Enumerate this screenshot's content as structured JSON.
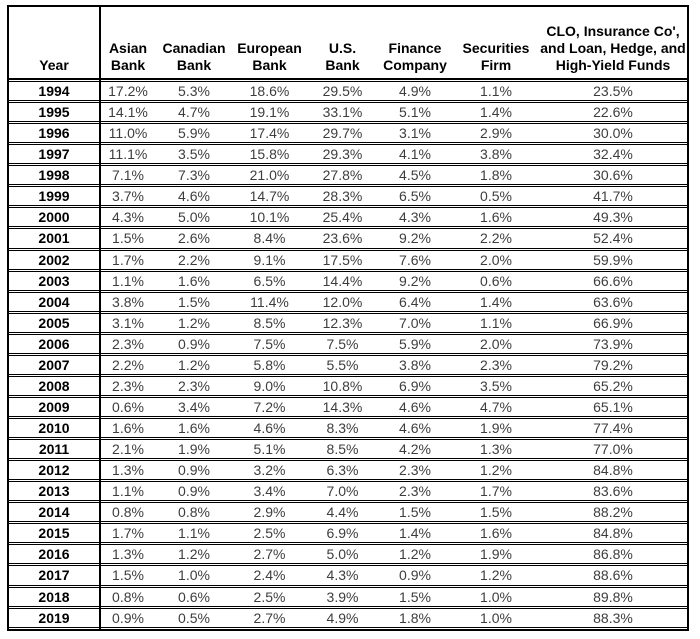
{
  "table": {
    "header": {
      "lines": [
        [
          "Year"
        ],
        [
          "Asian",
          "Bank"
        ],
        [
          "Canadian",
          "Bank"
        ],
        [
          "European",
          "Bank"
        ],
        [
          "U.S.",
          "Bank"
        ],
        [
          "Finance",
          "Company"
        ],
        [
          "Securities",
          "Firm"
        ],
        [
          "CLO, Insurance Co',",
          "and Loan, Hedge, and",
          "High-Yield Funds"
        ]
      ]
    },
    "rows": [
      {
        "year": "1994",
        "cells": [
          "17.2%",
          "5.3%",
          "18.6%",
          "29.5%",
          "4.9%",
          "1.1%",
          "23.5%"
        ]
      },
      {
        "year": "1995",
        "cells": [
          "14.1%",
          "4.7%",
          "19.1%",
          "33.1%",
          "5.1%",
          "1.4%",
          "22.6%"
        ]
      },
      {
        "year": "1996",
        "cells": [
          "11.0%",
          "5.9%",
          "17.4%",
          "29.7%",
          "3.1%",
          "2.9%",
          "30.0%"
        ]
      },
      {
        "year": "1997",
        "cells": [
          "11.1%",
          "3.5%",
          "15.8%",
          "29.3%",
          "4.1%",
          "3.8%",
          "32.4%"
        ]
      },
      {
        "year": "1998",
        "cells": [
          "7.1%",
          "7.3%",
          "21.0%",
          "27.8%",
          "4.5%",
          "1.8%",
          "30.6%"
        ]
      },
      {
        "year": "1999",
        "cells": [
          "3.7%",
          "4.6%",
          "14.7%",
          "28.3%",
          "6.5%",
          "0.5%",
          "41.7%"
        ]
      },
      {
        "year": "2000",
        "cells": [
          "4.3%",
          "5.0%",
          "10.1%",
          "25.4%",
          "4.3%",
          "1.6%",
          "49.3%"
        ]
      },
      {
        "year": "2001",
        "cells": [
          "1.5%",
          "2.6%",
          "8.4%",
          "23.6%",
          "9.2%",
          "2.2%",
          "52.4%"
        ]
      },
      {
        "year": "2002",
        "cells": [
          "1.7%",
          "2.2%",
          "9.1%",
          "17.5%",
          "7.6%",
          "2.0%",
          "59.9%"
        ]
      },
      {
        "year": "2003",
        "cells": [
          "1.1%",
          "1.6%",
          "6.5%",
          "14.4%",
          "9.2%",
          "0.6%",
          "66.6%"
        ]
      },
      {
        "year": "2004",
        "cells": [
          "3.8%",
          "1.5%",
          "11.4%",
          "12.0%",
          "6.4%",
          "1.4%",
          "63.6%"
        ]
      },
      {
        "year": "2005",
        "cells": [
          "3.1%",
          "1.2%",
          "8.5%",
          "12.3%",
          "7.0%",
          "1.1%",
          "66.9%"
        ]
      },
      {
        "year": "2006",
        "cells": [
          "2.3%",
          "0.9%",
          "7.5%",
          "7.5%",
          "5.9%",
          "2.0%",
          "73.9%"
        ]
      },
      {
        "year": "2007",
        "cells": [
          "2.2%",
          "1.2%",
          "5.8%",
          "5.5%",
          "3.8%",
          "2.3%",
          "79.2%"
        ]
      },
      {
        "year": "2008",
        "cells": [
          "2.3%",
          "2.3%",
          "9.0%",
          "10.8%",
          "6.9%",
          "3.5%",
          "65.2%"
        ]
      },
      {
        "year": "2009",
        "cells": [
          "0.6%",
          "3.4%",
          "7.2%",
          "14.3%",
          "4.6%",
          "4.7%",
          "65.1%"
        ]
      },
      {
        "year": "2010",
        "cells": [
          "1.6%",
          "1.6%",
          "4.6%",
          "8.3%",
          "4.6%",
          "1.9%",
          "77.4%"
        ]
      },
      {
        "year": "2011",
        "cells": [
          "2.1%",
          "1.9%",
          "5.1%",
          "8.5%",
          "4.2%",
          "1.3%",
          "77.0%"
        ]
      },
      {
        "year": "2012",
        "cells": [
          "1.3%",
          "0.9%",
          "3.2%",
          "6.3%",
          "2.3%",
          "1.2%",
          "84.8%"
        ]
      },
      {
        "year": "2013",
        "cells": [
          "1.1%",
          "0.9%",
          "3.4%",
          "7.0%",
          "2.3%",
          "1.7%",
          "83.6%"
        ]
      },
      {
        "year": "2014",
        "cells": [
          "0.8%",
          "0.8%",
          "2.9%",
          "4.4%",
          "1.5%",
          "1.5%",
          "88.2%"
        ]
      },
      {
        "year": "2015",
        "cells": [
          "1.7%",
          "1.1%",
          "2.5%",
          "6.9%",
          "1.4%",
          "1.6%",
          "84.8%"
        ]
      },
      {
        "year": "2016",
        "cells": [
          "1.3%",
          "1.2%",
          "2.7%",
          "5.0%",
          "1.2%",
          "1.9%",
          "86.8%"
        ]
      },
      {
        "year": "2017",
        "cells": [
          "1.5%",
          "1.0%",
          "2.4%",
          "4.3%",
          "0.9%",
          "1.2%",
          "88.6%"
        ]
      },
      {
        "year": "2018",
        "cells": [
          "0.8%",
          "0.6%",
          "2.5%",
          "3.9%",
          "1.5%",
          "1.0%",
          "89.8%"
        ]
      },
      {
        "year": "2019",
        "cells": [
          "0.9%",
          "0.5%",
          "2.7%",
          "4.9%",
          "1.8%",
          "1.0%",
          "88.3%"
        ]
      }
    ]
  },
  "chart_data": {
    "type": "table",
    "title": "",
    "columns": [
      "Year",
      "Asian Bank",
      "Canadian Bank",
      "European Bank",
      "U.S. Bank",
      "Finance Company",
      "Securities Firm",
      "CLO, Insurance Co', and Loan, Hedge, and High-Yield Funds"
    ],
    "unit": "percent",
    "rows": [
      [
        1994,
        17.2,
        5.3,
        18.6,
        29.5,
        4.9,
        1.1,
        23.5
      ],
      [
        1995,
        14.1,
        4.7,
        19.1,
        33.1,
        5.1,
        1.4,
        22.6
      ],
      [
        1996,
        11.0,
        5.9,
        17.4,
        29.7,
        3.1,
        2.9,
        30.0
      ],
      [
        1997,
        11.1,
        3.5,
        15.8,
        29.3,
        4.1,
        3.8,
        32.4
      ],
      [
        1998,
        7.1,
        7.3,
        21.0,
        27.8,
        4.5,
        1.8,
        30.6
      ],
      [
        1999,
        3.7,
        4.6,
        14.7,
        28.3,
        6.5,
        0.5,
        41.7
      ],
      [
        2000,
        4.3,
        5.0,
        10.1,
        25.4,
        4.3,
        1.6,
        49.3
      ],
      [
        2001,
        1.5,
        2.6,
        8.4,
        23.6,
        9.2,
        2.2,
        52.4
      ],
      [
        2002,
        1.7,
        2.2,
        9.1,
        17.5,
        7.6,
        2.0,
        59.9
      ],
      [
        2003,
        1.1,
        1.6,
        6.5,
        14.4,
        9.2,
        0.6,
        66.6
      ],
      [
        2004,
        3.8,
        1.5,
        11.4,
        12.0,
        6.4,
        1.4,
        63.6
      ],
      [
        2005,
        3.1,
        1.2,
        8.5,
        12.3,
        7.0,
        1.1,
        66.9
      ],
      [
        2006,
        2.3,
        0.9,
        7.5,
        7.5,
        5.9,
        2.0,
        73.9
      ],
      [
        2007,
        2.2,
        1.2,
        5.8,
        5.5,
        3.8,
        2.3,
        79.2
      ],
      [
        2008,
        2.3,
        2.3,
        9.0,
        10.8,
        6.9,
        3.5,
        65.2
      ],
      [
        2009,
        0.6,
        3.4,
        7.2,
        14.3,
        4.6,
        4.7,
        65.1
      ],
      [
        2010,
        1.6,
        1.6,
        4.6,
        8.3,
        4.6,
        1.9,
        77.4
      ],
      [
        2011,
        2.1,
        1.9,
        5.1,
        8.5,
        4.2,
        1.3,
        77.0
      ],
      [
        2012,
        1.3,
        0.9,
        3.2,
        6.3,
        2.3,
        1.2,
        84.8
      ],
      [
        2013,
        1.1,
        0.9,
        3.4,
        7.0,
        2.3,
        1.7,
        83.6
      ],
      [
        2014,
        0.8,
        0.8,
        2.9,
        4.4,
        1.5,
        1.5,
        88.2
      ],
      [
        2015,
        1.7,
        1.1,
        2.5,
        6.9,
        1.4,
        1.6,
        84.8
      ],
      [
        2016,
        1.3,
        1.2,
        2.7,
        5.0,
        1.2,
        1.9,
        86.8
      ],
      [
        2017,
        1.5,
        1.0,
        2.4,
        4.3,
        0.9,
        1.2,
        88.6
      ],
      [
        2018,
        0.8,
        0.6,
        2.5,
        3.9,
        1.5,
        1.0,
        89.8
      ],
      [
        2019,
        0.9,
        0.5,
        2.7,
        4.9,
        1.8,
        1.0,
        88.3
      ]
    ],
    "layout": {
      "grid": true,
      "outer_border": true,
      "year_column_divider": true,
      "border_color": "#000000",
      "header_text_color": "#000000",
      "data_text_color": "#3d3d3d",
      "background": "#ffffff"
    }
  }
}
